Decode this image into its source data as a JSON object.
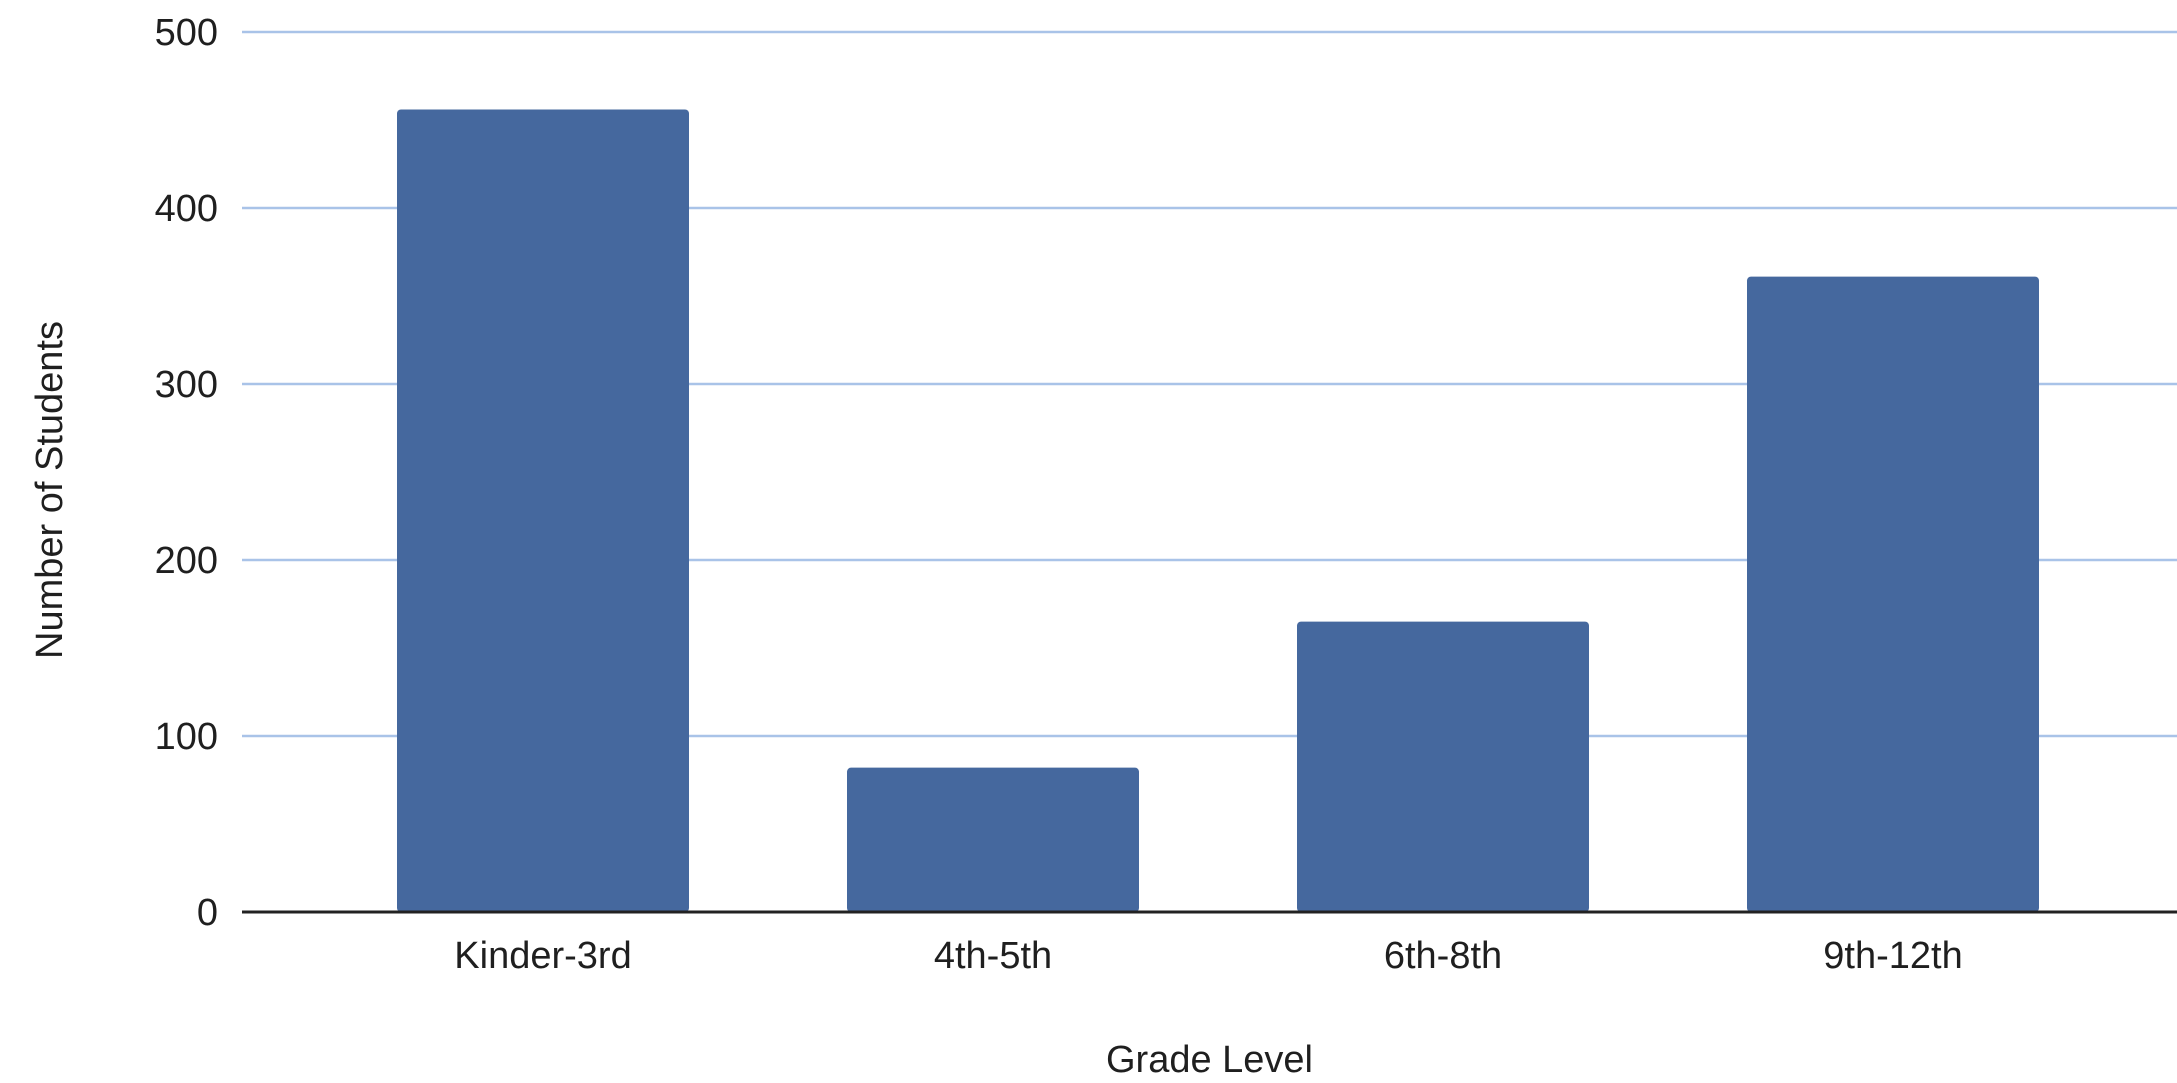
{
  "chart_data": {
    "type": "bar",
    "title": "",
    "xlabel": "Grade Level",
    "ylabel": "Number of Students",
    "categories": [
      "Kinder-3rd",
      "4th-5th",
      "6th-8th",
      "9th-12th"
    ],
    "values": [
      456,
      82,
      165,
      361
    ],
    "ylim": [
      0,
      500
    ],
    "yticks": [
      0,
      100,
      200,
      300,
      400,
      500
    ],
    "grid": true,
    "legend": "none",
    "colors": {
      "bar": "#45689e",
      "grid": "#a9c3e8",
      "axis": "#222222",
      "text": "#1f1f1f"
    }
  }
}
